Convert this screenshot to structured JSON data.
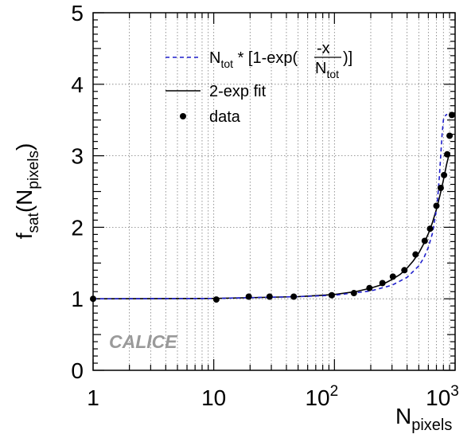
{
  "chart_data": {
    "type": "scatter",
    "x_axis": {
      "label_main": "N",
      "label_sub": "pixels",
      "scale": "log",
      "range": [
        1,
        1000
      ],
      "tick_labels": [
        {
          "value": 1,
          "text": "1"
        },
        {
          "value": 10,
          "text": "10"
        },
        {
          "value": 100,
          "base": "10",
          "exp": "2"
        },
        {
          "value": 1000,
          "base": "10",
          "exp": "3"
        }
      ]
    },
    "y_axis": {
      "label_main": "f",
      "label_sub": "sat",
      "label_paren_main": "N",
      "label_paren_sub": "pixels",
      "scale": "linear",
      "range": [
        0,
        5
      ],
      "tick_labels": [
        "0",
        "1",
        "2",
        "3",
        "4",
        "5"
      ]
    },
    "grid": true,
    "legend_position": "top-center",
    "legend": [
      {
        "kind": "dashed-line",
        "color": "#1f1fcc",
        "text_a": "N",
        "text_a_sub": "tot",
        "text_b": " * [1-exp(",
        "frac_num": "-x",
        "frac_den_main": "N",
        "frac_den_sub": "tot",
        "text_c": ")]"
      },
      {
        "kind": "line",
        "color": "#000000",
        "text": "2-exp fit"
      },
      {
        "kind": "marker",
        "color": "#000000",
        "text": "data"
      }
    ],
    "series": [
      {
        "name": "data",
        "kind": "points",
        "x": [
          1,
          10.5,
          19.5,
          29,
          46,
          95,
          145,
          195,
          250,
          305,
          380,
          470,
          560,
          620,
          700,
          760,
          810,
          860,
          900,
          940
        ],
        "y": [
          1.0,
          0.99,
          1.03,
          1.03,
          1.03,
          1.05,
          1.08,
          1.15,
          1.22,
          1.31,
          1.4,
          1.62,
          1.81,
          1.98,
          2.3,
          2.55,
          2.73,
          3.02,
          3.28,
          3.57
        ]
      },
      {
        "name": "2-exp fit",
        "kind": "line",
        "x": [
          1,
          10,
          50,
          100,
          150,
          200,
          250,
          300,
          350,
          400,
          450,
          500,
          550,
          600,
          650,
          700,
          750,
          800,
          850,
          900
        ],
        "y": [
          1.0,
          1.005,
          1.03,
          1.06,
          1.1,
          1.15,
          1.2,
          1.27,
          1.34,
          1.43,
          1.53,
          1.64,
          1.77,
          1.91,
          2.07,
          2.25,
          2.45,
          2.66,
          2.88,
          3.05
        ]
      },
      {
        "name": "N_tot * [1-exp(-x/N_tot)]",
        "kind": "dashed-line",
        "x": [
          1,
          10,
          50,
          100,
          200,
          300,
          400,
          500,
          550,
          600,
          650,
          700,
          720,
          740,
          760,
          780,
          800,
          820,
          840,
          860
        ],
        "y": [
          1.0,
          1.005,
          1.03,
          1.05,
          1.11,
          1.19,
          1.3,
          1.46,
          1.57,
          1.72,
          1.92,
          2.25,
          2.45,
          2.7,
          3.0,
          3.3,
          3.5,
          3.55,
          3.57,
          3.58
        ]
      }
    ]
  },
  "watermark": "CALICE"
}
